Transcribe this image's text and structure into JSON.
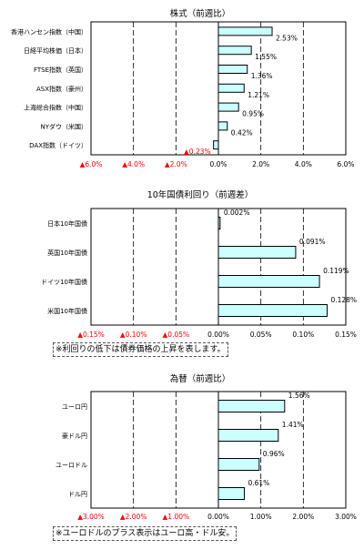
{
  "chart_data": [
    {
      "type": "bar",
      "title": "株式（前週比）",
      "categories": [
        "香港ハンセン指数（中国）",
        "日経平均株価（日本）",
        "FTSE指数（英国）",
        "ASX指数（豪州）",
        "上海総合指数（中国）",
        "NYダウ（米国）",
        "DAX指数（ドイツ）"
      ],
      "values": [
        2.53,
        1.55,
        1.36,
        1.21,
        0.95,
        0.42,
        -0.23
      ],
      "value_labels": [
        "2.53%",
        "1.55%",
        "1.36%",
        "1.21%",
        "0.95%",
        "0.42%",
        "▲0.23%"
      ],
      "xlim": [
        -6.0,
        6.0
      ],
      "ticks": [
        -6,
        -4,
        -2,
        0,
        2,
        4,
        6
      ],
      "tick_labels": [
        "▲6.0%",
        "▲4.0%",
        "▲2.0%",
        "0.0%",
        "2.0%",
        "4.0%",
        "6.0%"
      ],
      "grid": true,
      "note": ""
    },
    {
      "type": "bar",
      "title": "10年国債利回り（前週差）",
      "categories": [
        "日本10年国債",
        "英国10年国債",
        "ドイツ10年国債",
        "米国10年国債"
      ],
      "values": [
        0.002,
        0.091,
        0.119,
        0.128
      ],
      "value_labels": [
        "0.002%",
        "0.091%",
        "0.119%",
        "0.128%"
      ],
      "xlim": [
        -0.15,
        0.15
      ],
      "ticks": [
        -0.15,
        -0.1,
        -0.05,
        0,
        0.05,
        0.1,
        0.15
      ],
      "tick_labels": [
        "▲0.15%",
        "▲0.10%",
        "▲0.05%",
        "0.00%",
        "0.05%",
        "0.10%",
        "0.15%"
      ],
      "grid": true,
      "note": "※利回りの低下は債券価格の上昇を表します。"
    },
    {
      "type": "bar",
      "title": "為替（前週比）",
      "categories": [
        "ユーロ円",
        "豪ドル円",
        "ユーロドル",
        "ドル円"
      ],
      "values": [
        1.56,
        1.41,
        0.96,
        0.61
      ],
      "value_labels": [
        "1.56%",
        "1.41%",
        "0.96%",
        "0.61%"
      ],
      "xlim": [
        -3.0,
        3.0
      ],
      "ticks": [
        -3,
        -2,
        -1,
        0,
        1,
        2,
        3
      ],
      "tick_labels": [
        "▲3.00%",
        "▲2.00%",
        "▲1.00%",
        "0.00%",
        "1.00%",
        "2.00%",
        "3.00%"
      ],
      "grid": true,
      "note": "※ユーロドルのプラス表示はユーロ高・ドル安。"
    }
  ],
  "colors": {
    "bar_fill": "#ccffff",
    "bar_stroke": "#000000",
    "negative_text": "#ff0000",
    "grid": "#000000"
  }
}
